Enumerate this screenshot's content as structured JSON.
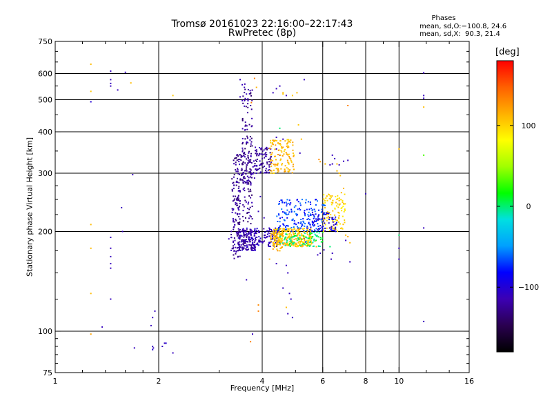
{
  "title": {
    "line1": "Tromsø 20161023 22:16:00–22:17:43",
    "line2": "RwPretec (8p)"
  },
  "phases_box": {
    "heading": "Phases",
    "line_o": "mean, sd,O:−100.8, 24.6",
    "line_x": "mean, sd,X:  90.3, 21.4"
  },
  "colorbar": {
    "title": "[deg]",
    "ticks": [
      "100",
      "0",
      "−100"
    ],
    "tick_values": [
      100,
      0,
      -100
    ],
    "range": [
      -180,
      180
    ],
    "colors": [
      "#000000",
      "#2a0050",
      "#3c00b4",
      "#0000ff",
      "#00a0ff",
      "#00e0e0",
      "#00ff00",
      "#a0ff00",
      "#ffff00",
      "#ffb000",
      "#ff6000",
      "#ff0000"
    ]
  },
  "chart_data": {
    "type": "scatter",
    "title": "Tromsø 20161023 22:16:00–22:17:43",
    "subtitle": "RwPretec (8p)",
    "xlabel": "Frequency [MHz]",
    "ylabel": "Stationary phase Virtual Height [km]",
    "xscale": "log",
    "yscale": "log",
    "xlim": [
      1,
      16
    ],
    "ylim": [
      75,
      750
    ],
    "xticks": [
      1,
      2,
      4,
      6,
      8,
      10,
      16
    ],
    "xticklabels": [
      "1",
      "2",
      "4",
      "6",
      "8",
      "10",
      "16"
    ],
    "yticks": [
      75,
      100,
      200,
      300,
      400,
      500,
      600,
      750
    ],
    "yticklabels": [
      "75",
      "100",
      "200",
      "300",
      "400",
      "500",
      "600",
      "750"
    ],
    "grid": true,
    "color_scale": "phase [deg], −180 to 180",
    "points": [
      [
        1.27,
        640,
        110
      ],
      [
        1.27,
        530,
        105
      ],
      [
        1.27,
        493,
        -100
      ],
      [
        1.27,
        210,
        110
      ],
      [
        1.27,
        178,
        110
      ],
      [
        1.27,
        130,
        110
      ],
      [
        1.27,
        98,
        120
      ],
      [
        1.45,
        610,
        -110
      ],
      [
        1.45,
        575,
        -110
      ],
      [
        1.45,
        560,
        -110
      ],
      [
        1.45,
        550,
        -110
      ],
      [
        1.45,
        192,
        -110
      ],
      [
        1.45,
        178,
        -110
      ],
      [
        1.45,
        168,
        -110
      ],
      [
        1.45,
        160,
        -110
      ],
      [
        1.45,
        155,
        -110
      ],
      [
        1.45,
        125,
        -110
      ],
      [
        1.52,
        535,
        -110
      ],
      [
        1.56,
        236,
        -110
      ],
      [
        1.57,
        200,
        -110
      ],
      [
        1.6,
        605,
        -110
      ],
      [
        1.66,
        562,
        110
      ],
      [
        1.68,
        297,
        -110
      ],
      [
        1.7,
        89,
        -110
      ],
      [
        1.37,
        103,
        -110
      ],
      [
        1.9,
        104,
        -110
      ],
      [
        1.92,
        110,
        -110
      ],
      [
        1.95,
        115,
        -110
      ],
      [
        1.92,
        90,
        -110
      ],
      [
        1.93,
        89,
        -110
      ],
      [
        1.92,
        88,
        -100
      ],
      [
        2.05,
        90,
        -110
      ],
      [
        2.08,
        92,
        -110
      ],
      [
        2.1,
        92,
        -100
      ],
      [
        2.2,
        86,
        -110
      ],
      [
        2.2,
        515,
        105
      ],
      [
        3.2,
        190,
        -110
      ],
      [
        3.45,
        575,
        -110
      ],
      [
        3.5,
        555,
        -110
      ],
      [
        3.55,
        545,
        -110
      ],
      [
        3.6,
        520,
        -110
      ],
      [
        3.45,
        510,
        -110
      ],
      [
        3.5,
        497,
        -110
      ],
      [
        3.55,
        478,
        -110
      ],
      [
        3.95,
        255,
        -110
      ],
      [
        3.9,
        230,
        -110
      ],
      [
        4.05,
        220,
        -110
      ],
      [
        3.9,
        120,
        130
      ],
      [
        3.9,
        115,
        135
      ],
      [
        3.7,
        93,
        135
      ],
      [
        3.75,
        98,
        -110
      ],
      [
        3.6,
        143,
        -110
      ],
      [
        3.8,
        580,
        135
      ],
      [
        3.85,
        545,
        115
      ],
      [
        3.72,
        490,
        135
      ],
      [
        4.3,
        525,
        -110
      ],
      [
        4.4,
        540,
        -110
      ],
      [
        4.5,
        550,
        -110
      ],
      [
        4.6,
        525,
        110
      ],
      [
        4.6,
        520,
        105
      ],
      [
        4.7,
        515,
        -110
      ],
      [
        4.9,
        515,
        105
      ],
      [
        5.05,
        525,
        110
      ],
      [
        4.5,
        410,
        0
      ],
      [
        4.4,
        385,
        -110
      ],
      [
        4.6,
        380,
        -110
      ],
      [
        4.4,
        355,
        -110
      ],
      [
        4.55,
        360,
        110
      ],
      [
        4.5,
        340,
        -110
      ],
      [
        4.3,
        300,
        110
      ],
      [
        4.4,
        310,
        110
      ],
      [
        4.6,
        135,
        -110
      ],
      [
        4.8,
        130,
        -110
      ],
      [
        4.85,
        125,
        -110
      ],
      [
        4.7,
        118,
        110
      ],
      [
        4.75,
        113,
        -110
      ],
      [
        4.9,
        110,
        -110
      ],
      [
        4.7,
        158,
        -110
      ],
      [
        4.75,
        150,
        -110
      ],
      [
        4.4,
        160,
        -110
      ],
      [
        4.2,
        165,
        110
      ],
      [
        4.5,
        175,
        110
      ],
      [
        5.3,
        575,
        -110
      ],
      [
        5.1,
        420,
        105
      ],
      [
        5.2,
        380,
        110
      ],
      [
        5.15,
        345,
        -110
      ],
      [
        5.3,
        190,
        -110
      ],
      [
        5.35,
        186,
        -110
      ],
      [
        5.4,
        205,
        -110
      ],
      [
        5.5,
        198,
        -110
      ],
      [
        5.7,
        187,
        110
      ],
      [
        5.8,
        170,
        -110
      ],
      [
        5.9,
        172,
        -110
      ],
      [
        5.75,
        180,
        110
      ],
      [
        5.85,
        330,
        130
      ],
      [
        5.9,
        325,
        120
      ],
      [
        6.1,
        320,
        110
      ],
      [
        6.3,
        318,
        -110
      ],
      [
        6.4,
        320,
        -110
      ],
      [
        6.4,
        340,
        -110
      ],
      [
        6.5,
        332,
        -110
      ],
      [
        6.6,
        320,
        110
      ],
      [
        6.7,
        318,
        -110
      ],
      [
        6.9,
        326,
        -110
      ],
      [
        7.1,
        328,
        -110
      ],
      [
        6.6,
        305,
        110
      ],
      [
        6.7,
        300,
        110
      ],
      [
        6.75,
        295,
        110
      ],
      [
        6.9,
        270,
        110
      ],
      [
        6.8,
        262,
        110
      ],
      [
        6.6,
        250,
        110
      ],
      [
        7.1,
        480,
        135
      ],
      [
        7.2,
        185,
        110
      ],
      [
        7.0,
        195,
        110
      ],
      [
        7.1,
        193,
        120
      ],
      [
        7.2,
        162,
        -110
      ],
      [
        7.0,
        188,
        -110
      ],
      [
        6.3,
        180,
        0
      ],
      [
        6.4,
        172,
        -110
      ],
      [
        6.35,
        165,
        -110
      ],
      [
        6.05,
        176,
        -110
      ],
      [
        8.0,
        260,
        -110
      ],
      [
        10.0,
        355,
        110
      ],
      [
        10.0,
        195,
        0
      ],
      [
        10.0,
        178,
        -110
      ],
      [
        10.0,
        165,
        -110
      ],
      [
        11.8,
        603,
        -110
      ],
      [
        11.8,
        515,
        -110
      ],
      [
        11.8,
        505,
        -110
      ],
      [
        11.8,
        475,
        110
      ],
      [
        11.8,
        340,
        30
      ],
      [
        11.8,
        205,
        -110
      ],
      [
        11.8,
        107,
        -110
      ]
    ],
    "clusters": [
      {
        "xr": [
          3.25,
          3.45
        ],
        "yr": [
          165,
          300
        ],
        "n": 110,
        "phase": -125
      },
      {
        "xr": [
          3.4,
          3.85
        ],
        "yr": [
          175,
          205
        ],
        "n": 160,
        "phase": -115
      },
      {
        "xr": [
          3.5,
          3.75
        ],
        "yr": [
          175,
          560
        ],
        "n": 150,
        "phase": -125
      },
      {
        "xr": [
          3.3,
          3.8
        ],
        "yr": [
          280,
          345
        ],
        "n": 90,
        "phase": -125
      },
      {
        "xr": [
          3.8,
          4.25
        ],
        "yr": [
          300,
          360
        ],
        "n": 90,
        "phase": -120
      },
      {
        "xr": [
          3.85,
          4.5
        ],
        "yr": [
          180,
          205
        ],
        "n": 90,
        "phase": -110
      },
      {
        "xr": [
          4.2,
          4.95
        ],
        "yr": [
          300,
          380
        ],
        "n": 120,
        "phase": 110
      },
      {
        "xr": [
          4.2,
          4.6
        ],
        "yr": [
          175,
          200
        ],
        "n": 60,
        "phase": 115
      },
      {
        "xr": [
          4.3,
          5.6
        ],
        "yr": [
          180,
          205
        ],
        "n": 260,
        "phase": 105
      },
      {
        "xr": [
          4.4,
          6.1
        ],
        "yr": [
          200,
          250
        ],
        "n": 180,
        "phase": -70
      },
      {
        "xr": [
          4.5,
          6.0
        ],
        "yr": [
          180,
          200
        ],
        "n": 90,
        "phase": 0
      },
      {
        "xr": [
          6.0,
          7.0
        ],
        "yr": [
          200,
          260
        ],
        "n": 110,
        "phase": 100
      },
      {
        "xr": [
          5.6,
          6.6
        ],
        "yr": [
          200,
          230
        ],
        "n": 60,
        "phase": -100
      }
    ]
  }
}
